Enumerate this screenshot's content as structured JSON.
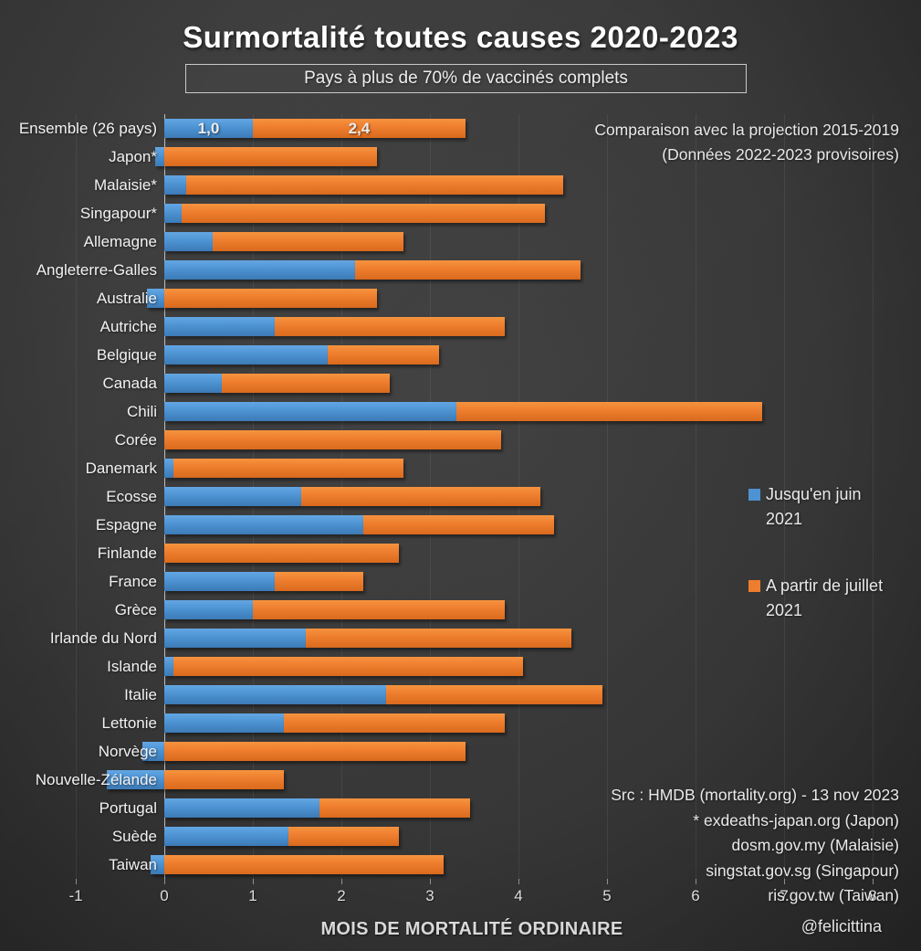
{
  "title": "Surmortalité toutes causes 2020-2023",
  "subtitle": "Pays à plus de 70% de vaccinés complets",
  "annotation_top": {
    "line1": "Comparaison avec la projection 2015-2019",
    "line2": "(Données 2022-2023 provisoires)"
  },
  "legend": [
    {
      "label": "Jusqu'en juin 2021",
      "color": "#4d93d3"
    },
    {
      "label": "A partir de juillet 2021",
      "color": "#ee7d2e"
    }
  ],
  "sources": {
    "line1": "Src : HMDB (mortality.org) - 13 nov 2023",
    "line2": "* exdeaths-japan.org (Japon)",
    "line3": "dosm.gov.my (Malaisie)",
    "line4": "singstat.gov.sg (Singapour)",
    "line5": "ris.gov.tw (Taiwan)"
  },
  "handle": "@felicittina",
  "chart_data": {
    "type": "bar",
    "orientation": "horizontal",
    "stacked": true,
    "title": "Surmortalité toutes causes 2020-2023",
    "subtitle": "Pays à plus de 70% de vaccinés complets",
    "xlabel": "MOIS DE MORTALITÉ ORDINAIRE",
    "ylabel": "",
    "xlim": [
      -1,
      8.5
    ],
    "xticks": [
      -1,
      0,
      1,
      2,
      3,
      4,
      5,
      6,
      7,
      8
    ],
    "grid": "vertical-faint",
    "legend_position": "right",
    "categories": [
      "Ensemble (26 pays)",
      "Japon*",
      "Malaisie*",
      "Singapour*",
      "Allemagne",
      "Angleterre-Galles",
      "Australie",
      "Autriche",
      "Belgique",
      "Canada",
      "Chili",
      "Corée",
      "Danemark",
      "Ecosse",
      "Espagne",
      "Finlande",
      "France",
      "Grèce",
      "Irlande du Nord",
      "Islande",
      "Italie",
      "Lettonie",
      "Norvège",
      "Nouvelle-Zélande",
      "Portugal",
      "Suède",
      "Taiwan"
    ],
    "series": [
      {
        "name": "Jusqu'en juin 2021",
        "color": "#4d93d3",
        "values": [
          1.0,
          -0.1,
          0.25,
          0.2,
          0.55,
          2.15,
          -0.2,
          1.25,
          1.85,
          0.65,
          3.3,
          0,
          0.1,
          1.55,
          2.25,
          0,
          1.25,
          1.0,
          1.6,
          0.1,
          2.5,
          1.35,
          -0.25,
          -0.65,
          1.75,
          1.4,
          -0.15
        ]
      },
      {
        "name": "A partir de juillet 2021",
        "color": "#ee7d2e",
        "values": [
          2.4,
          2.4,
          4.25,
          4.1,
          2.15,
          2.55,
          2.4,
          2.6,
          1.25,
          1.9,
          3.45,
          3.8,
          2.6,
          2.7,
          2.15,
          2.65,
          1.0,
          2.85,
          3.0,
          3.95,
          2.45,
          2.5,
          3.4,
          1.35,
          1.7,
          1.25,
          3.15
        ]
      }
    ],
    "bar_labels": {
      "category_index": 0,
      "values": [
        "1,0",
        "2,4"
      ]
    }
  }
}
